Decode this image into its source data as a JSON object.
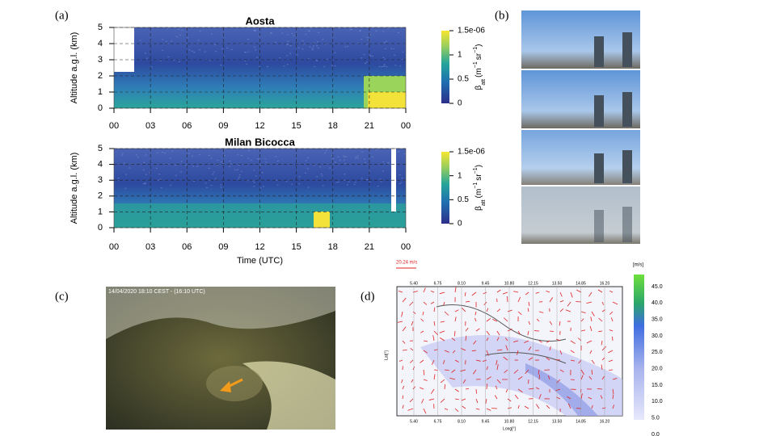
{
  "panels": {
    "a": {
      "label": "(a)",
      "xlabel": "Time (UTC)",
      "xticks": [
        "00",
        "03",
        "06",
        "09",
        "12",
        "15",
        "18",
        "21",
        "00"
      ],
      "clim": [
        0,
        1.5e-06
      ],
      "cticks": [
        0,
        {
          "value": 5e-07,
          "label": "0.5"
        },
        {
          "value": 1e-06,
          "label": "1"
        },
        {
          "value": 1.5e-06,
          "label": "1.5e-06"
        }
      ],
      "colorbar_label": [
        "β",
        "att",
        "(m",
        "−1",
        "sr",
        "−1",
        ")"
      ],
      "charts": [
        {
          "title": "Aosta",
          "ylabel": "Altitude a.g.l. (km)",
          "ylim": [
            0,
            5
          ],
          "yticks": [
            0,
            1,
            2,
            3,
            4,
            5
          ]
        },
        {
          "title": "Milan Bicocca",
          "ylabel": "Altitude a.g.l. (km)",
          "ylim": [
            0,
            5
          ],
          "yticks": [
            0,
            1,
            2,
            3,
            4,
            5
          ]
        }
      ]
    },
    "b": {
      "label": "(b)"
    },
    "c": {
      "label": "(c)",
      "caption": "14/04/2020 18:10 CEST - (16:10 UTC)"
    },
    "d": {
      "label": "(d)",
      "vector_label": "20.24 m/s",
      "unit": "[m/s]",
      "xlabel": "Long[°]",
      "ylabel": "Lat[°]",
      "clim": [
        0,
        45
      ],
      "cticks": [
        {
          "value": 0,
          "label": "0.0"
        },
        {
          "value": 5,
          "label": "5.0"
        },
        {
          "value": 10,
          "label": "10.0"
        },
        {
          "value": 15,
          "label": "15.0"
        },
        {
          "value": 20,
          "label": "20.0"
        },
        {
          "value": 25,
          "label": "25.0"
        },
        {
          "value": 30,
          "label": "30.0"
        },
        {
          "value": 35,
          "label": "35.0"
        },
        {
          "value": 40,
          "label": "40.0"
        },
        {
          "value": 45,
          "label": "45.0"
        }
      ],
      "lonticks": [
        {
          "value": 5.4,
          "label": "5.40"
        },
        6.75,
        {
          "value": 8.1,
          "label": "8.10"
        },
        9.45,
        {
          "value": 10.8,
          "label": "10.80"
        },
        12.15,
        {
          "value": 13.5,
          "label": "13.50"
        },
        14.85,
        {
          "value": 16.2,
          "label": "16.20"
        }
      ]
    }
  }
}
